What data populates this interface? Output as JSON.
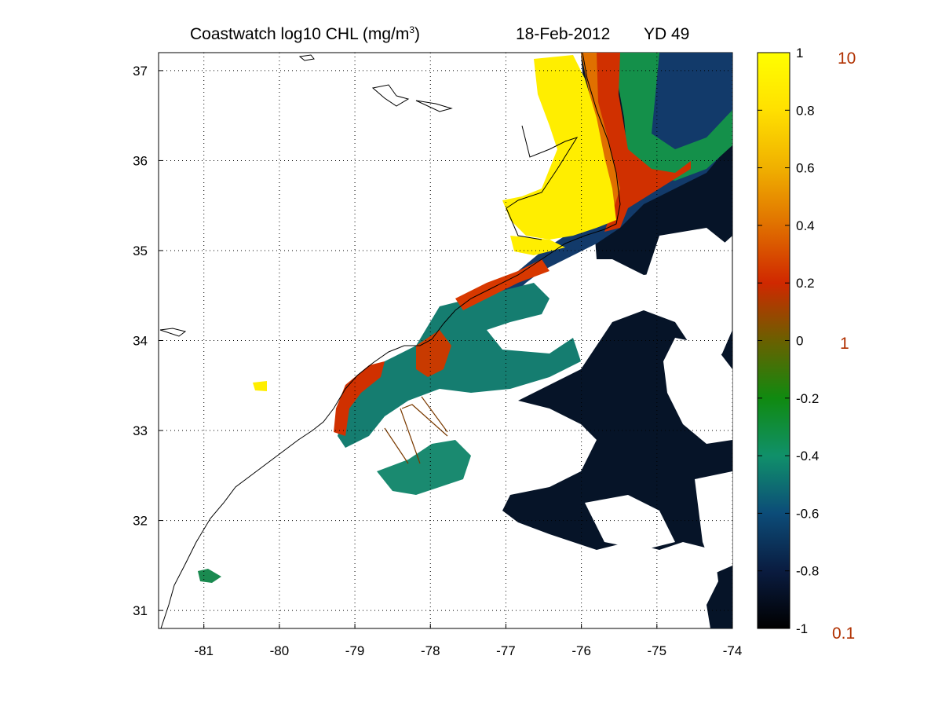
{
  "title": {
    "main": "Coastwatch  log10  CHL (mg/m",
    "superscript": "3",
    "close": ")",
    "date": "18-Feb-2012",
    "yearday": "YD 49"
  },
  "map": {
    "lon_range": [
      -81.6,
      -74.0
    ],
    "lat_range": [
      30.8,
      37.2
    ],
    "lon_ticks": [
      "-81",
      "-80",
      "-79",
      "-78",
      "-77",
      "-76",
      "-75",
      "-74"
    ],
    "lat_ticks": [
      "37",
      "36",
      "35",
      "34",
      "33",
      "32",
      "31"
    ],
    "grid": "dotted"
  },
  "colorbar": {
    "ticks": [
      "1",
      "0.8",
      "0.6",
      "0.4",
      "0.2",
      "0",
      "-0.2",
      "-0.4",
      "-0.6",
      "-0.8",
      "-1"
    ],
    "right_labels": [
      "10",
      "1",
      "0.1"
    ],
    "right_label_color": "#b03000",
    "range": [
      -1,
      1
    ]
  },
  "colors": {
    "yellow": "#ffff00",
    "orange": "#f0a000",
    "red": "#d02800",
    "green": "#109010",
    "teal": "#10906a",
    "navy": "#0c2858",
    "black": "#000000"
  }
}
